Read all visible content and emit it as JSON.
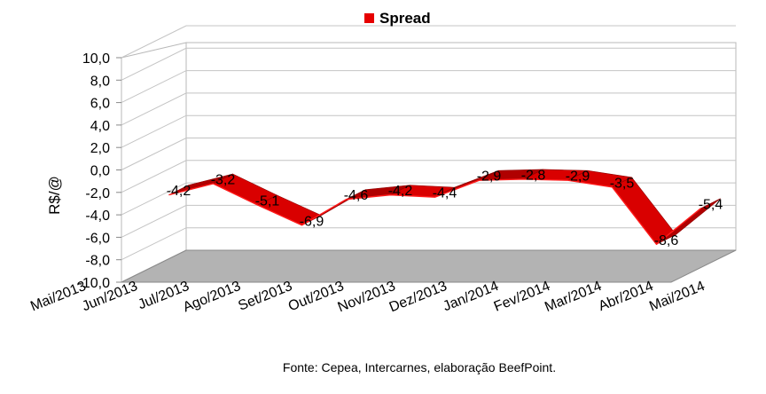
{
  "chart_data": {
    "type": "area",
    "style": "3d-ribbon",
    "categories": [
      "Mai/2013",
      "Jun/2013",
      "Jul/2013",
      "Ago/2013",
      "Set/2013",
      "Out/2013",
      "Nov/2013",
      "Dez/2013",
      "Jan/2014",
      "Fev/2014",
      "Mar/2014",
      "Abr/2014",
      "Mai/2014"
    ],
    "series": [
      {
        "name": "Spread",
        "values": [
          -4.2,
          -3.2,
          -5.1,
          -6.9,
          -4.6,
          -4.2,
          -4.4,
          -2.9,
          -2.8,
          -2.9,
          -3.5,
          -8.6,
          -5.4
        ],
        "color": "#e60000"
      }
    ],
    "data_labels": [
      "-4,2",
      "-3,2",
      "-5,1",
      "-6,9",
      "-4,6",
      "-4,2",
      "-4,4",
      "-2,9",
      "-2,8",
      "-2,9",
      "-3,5",
      "-8,6",
      "-5,4"
    ],
    "y_ticks": [
      "10,0",
      "8,0",
      "6,0",
      "4,0",
      "2,0",
      "0,0",
      "-2,0",
      "-4,0",
      "-6,0",
      "-8,0",
      "-10,0"
    ],
    "ylim": [
      -10,
      10
    ],
    "ylabel": "R$/@",
    "xlabel": "",
    "legend_position": "top-center",
    "grid": true,
    "floor_color": "#b3b3b3",
    "source": "Fonte: Cepea, Intercarnes, elaboração BeefPoint."
  }
}
